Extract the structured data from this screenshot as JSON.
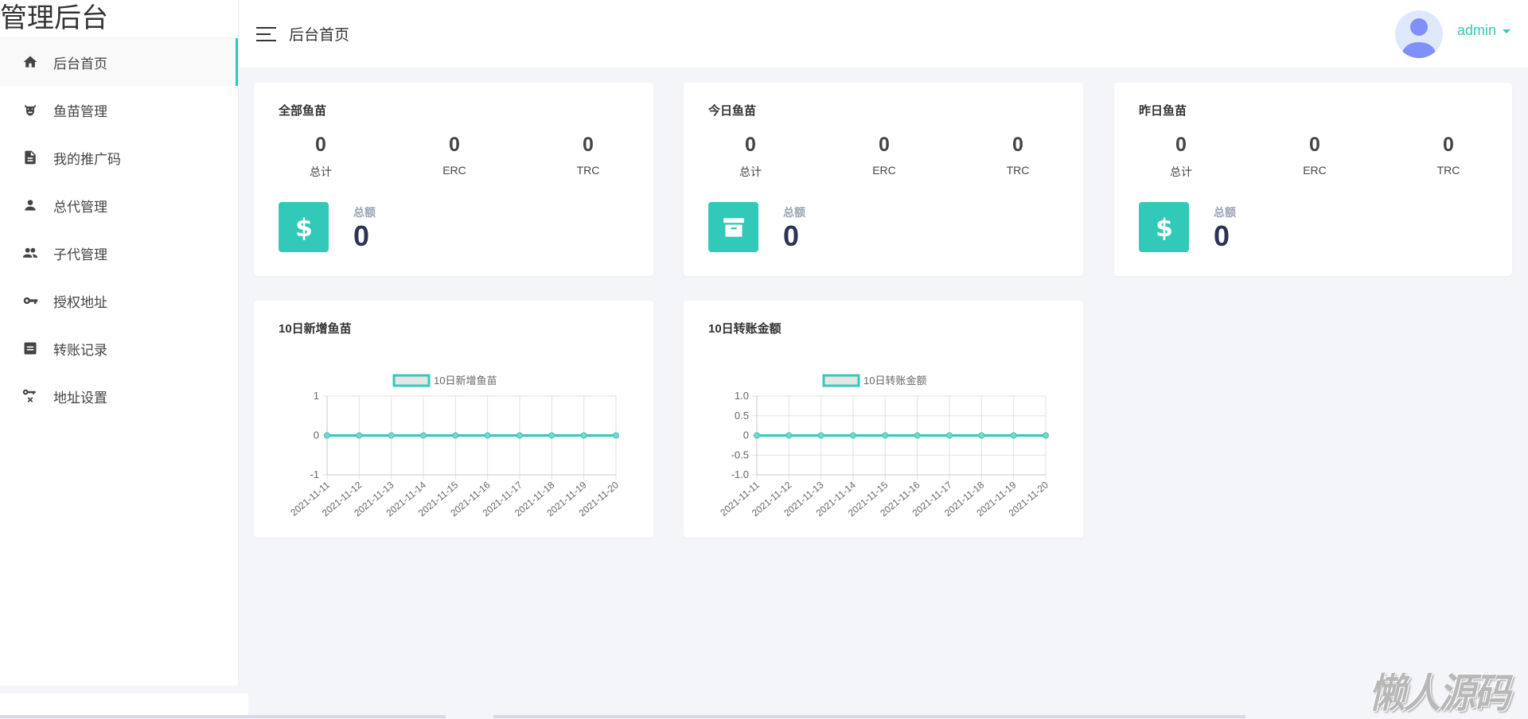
{
  "app": {
    "logo": "管理后台",
    "watermark": "懒人源码"
  },
  "sidebar": {
    "items": [
      {
        "label": "后台首页",
        "icon": "home-icon",
        "active": true
      },
      {
        "label": "鱼苗管理",
        "icon": "cow-icon"
      },
      {
        "label": "我的推广码",
        "icon": "file-icon"
      },
      {
        "label": "总代管理",
        "icon": "person-icon"
      },
      {
        "label": "子代管理",
        "icon": "people-icon"
      },
      {
        "label": "授权地址",
        "icon": "key-icon"
      },
      {
        "label": "转账记录",
        "icon": "list-icon"
      },
      {
        "label": "地址设置",
        "icon": "key-remove-icon"
      }
    ]
  },
  "header": {
    "title": "后台首页",
    "user": "admin"
  },
  "colors": {
    "accent": "#33c9b8",
    "total": "#2c3356"
  },
  "cards": [
    {
      "title": "全部鱼苗",
      "stats": [
        {
          "value": "0",
          "label": "总计"
        },
        {
          "value": "0",
          "label": "ERC"
        },
        {
          "value": "0",
          "label": "TRC"
        }
      ],
      "total_label": "总额",
      "total": "0",
      "icon": "dollar-icon"
    },
    {
      "title": "今日鱼苗",
      "stats": [
        {
          "value": "0",
          "label": "总计"
        },
        {
          "value": "0",
          "label": "ERC"
        },
        {
          "value": "0",
          "label": "TRC"
        }
      ],
      "total_label": "总额",
      "total": "0",
      "icon": "archive-icon"
    },
    {
      "title": "昨日鱼苗",
      "stats": [
        {
          "value": "0",
          "label": "总计"
        },
        {
          "value": "0",
          "label": "ERC"
        },
        {
          "value": "0",
          "label": "TRC"
        }
      ],
      "total_label": "总额",
      "total": "0",
      "icon": "dollar-icon"
    }
  ],
  "chart_cards": [
    {
      "title": "10日新增鱼苗"
    },
    {
      "title": "10日转账金额"
    }
  ],
  "chart_data": [
    {
      "type": "line",
      "legend": "10日新增鱼苗",
      "legend_position": "top",
      "grid": true,
      "categories": [
        "2021-11-11",
        "2021-11-12",
        "2021-11-13",
        "2021-11-14",
        "2021-11-15",
        "2021-11-16",
        "2021-11-17",
        "2021-11-18",
        "2021-11-19",
        "2021-11-20"
      ],
      "series": [
        {
          "name": "10日新增鱼苗",
          "values": [
            0,
            0,
            0,
            0,
            0,
            0,
            0,
            0,
            0,
            0
          ]
        }
      ],
      "ylim": [
        -1,
        1
      ],
      "yticks": [
        "1",
        "0",
        "-1"
      ],
      "ytick_values": [
        1,
        0,
        -1
      ]
    },
    {
      "type": "line",
      "legend": "10日转账金额",
      "legend_position": "top",
      "grid": true,
      "categories": [
        "2021-11-11",
        "2021-11-12",
        "2021-11-13",
        "2021-11-14",
        "2021-11-15",
        "2021-11-16",
        "2021-11-17",
        "2021-11-18",
        "2021-11-19",
        "2021-11-20"
      ],
      "series": [
        {
          "name": "10日转账金额",
          "values": [
            0,
            0,
            0,
            0,
            0,
            0,
            0,
            0,
            0,
            0
          ]
        }
      ],
      "ylim": [
        -1,
        1
      ],
      "yticks": [
        "1.0",
        "0.5",
        "0",
        "-0.5",
        "-1.0"
      ],
      "ytick_values": [
        1,
        0.5,
        0,
        -0.5,
        -1
      ]
    }
  ]
}
